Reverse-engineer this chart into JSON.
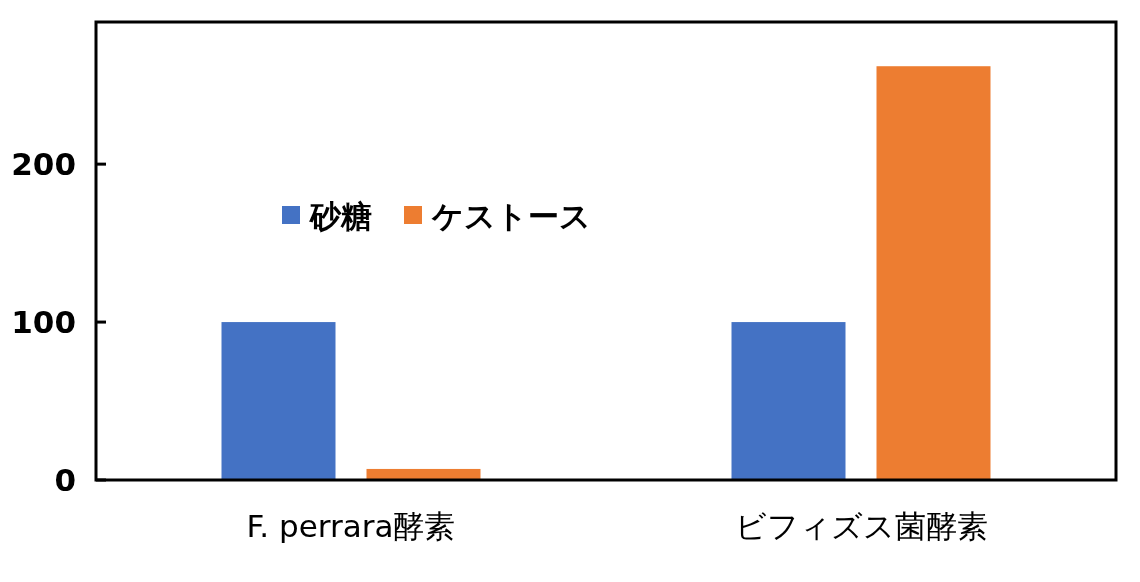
{
  "chart_data": {
    "type": "bar",
    "categories": [
      "F. perrara酵素",
      "ビフィズス菌酵素"
    ],
    "series": [
      {
        "name": "砂糖",
        "color": "#4472c4",
        "values": [
          100,
          100
        ]
      },
      {
        "name": "ケストース",
        "color": "#ed7d31",
        "values": [
          7,
          262
        ]
      }
    ],
    "ylim": [
      0,
      290
    ],
    "yticks": [
      0,
      100,
      200
    ],
    "legend": "top left",
    "grid": false
  }
}
